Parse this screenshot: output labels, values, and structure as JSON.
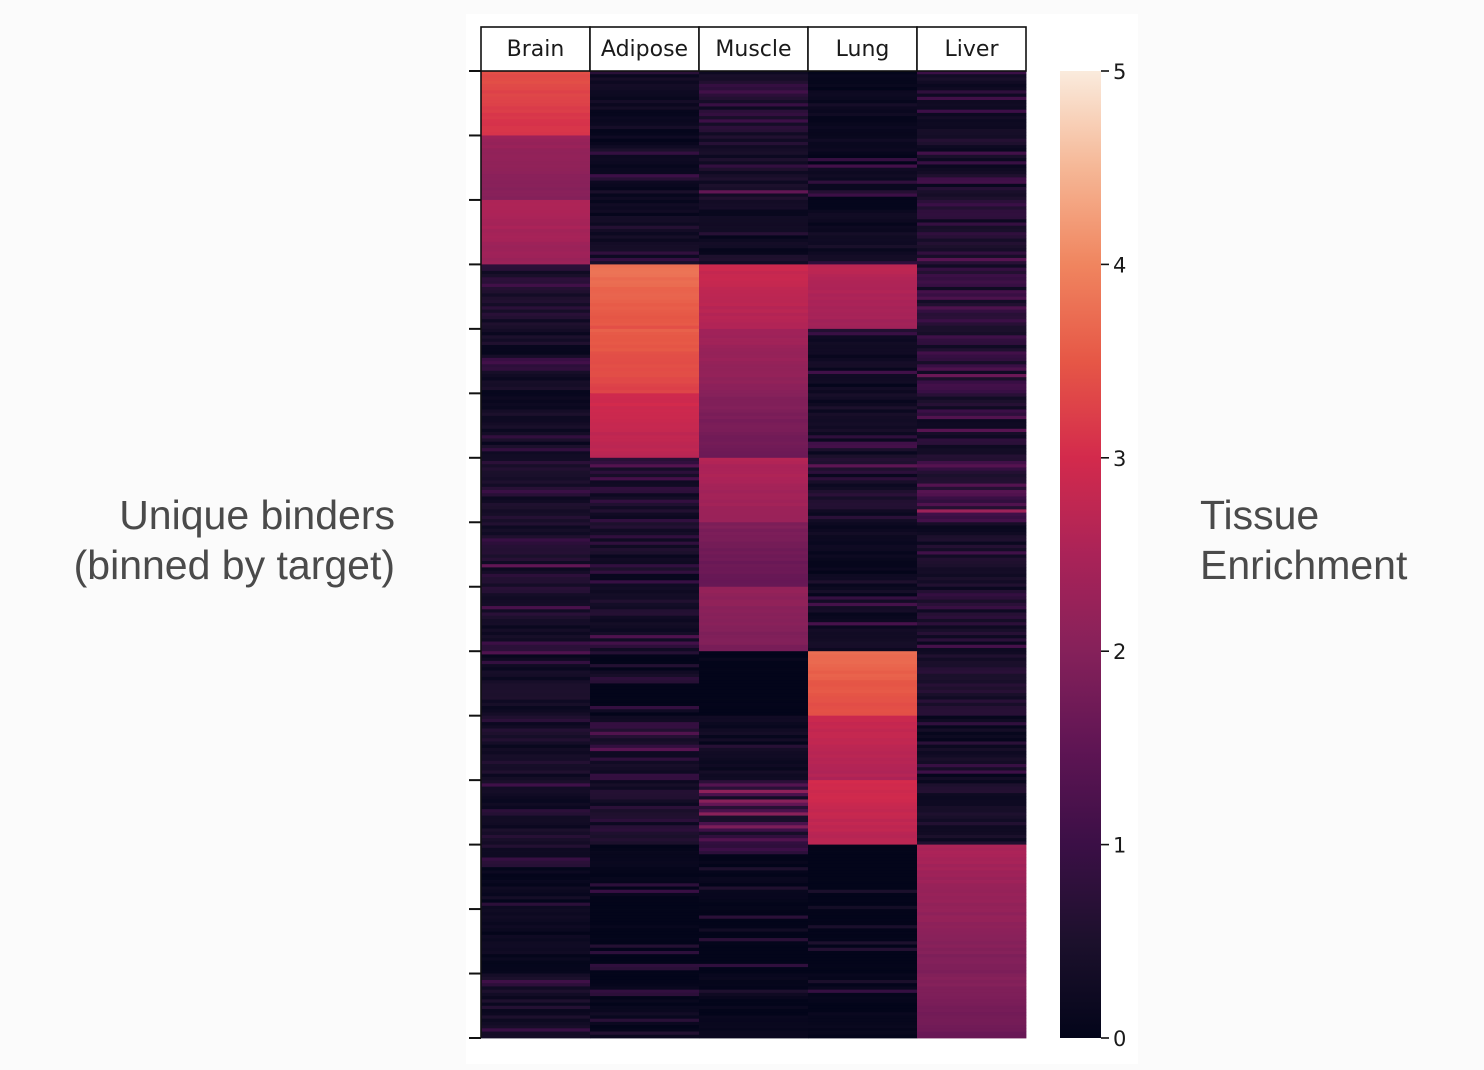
{
  "chart_data": {
    "type": "heatmap",
    "title": "",
    "categories": [
      "Brain",
      "Adipose",
      "Muscle",
      "Lung",
      "Liver"
    ],
    "ylabel": [
      "Unique binders",
      "(binned by target)"
    ],
    "colorbar_label": [
      "Tissue",
      "Enrichment"
    ],
    "colorbar_range": [
      0,
      5
    ],
    "colorbar_ticks": [
      "0",
      "1",
      "2",
      "3",
      "4",
      "5"
    ],
    "row_bins": 15,
    "cmap": "rocket",
    "bin_values": [
      [
        3.2,
        0.4,
        0.9,
        0.3,
        0.5
      ],
      [
        2.1,
        0.3,
        0.7,
        0.3,
        0.6
      ],
      [
        2.4,
        0.4,
        0.4,
        0.4,
        0.8
      ],
      [
        0.7,
        3.6,
        2.7,
        2.5,
        1.0
      ],
      [
        0.5,
        3.4,
        2.2,
        0.4,
        1.0
      ],
      [
        0.5,
        2.8,
        1.8,
        0.5,
        0.8
      ],
      [
        0.7,
        0.8,
        2.4,
        0.7,
        1.4
      ],
      [
        0.7,
        0.5,
        1.7,
        0.3,
        0.6
      ],
      [
        0.7,
        0.6,
        2.0,
        0.4,
        0.7
      ],
      [
        0.5,
        0.1,
        0.1,
        3.5,
        0.7
      ],
      [
        0.6,
        0.8,
        0.4,
        2.7,
        0.4
      ],
      [
        0.5,
        0.7,
        1.2,
        2.8,
        0.6
      ],
      [
        0.3,
        0.2,
        0.2,
        0.1,
        2.3
      ],
      [
        0.3,
        0.1,
        0.1,
        0.1,
        2.0
      ],
      [
        0.6,
        0.2,
        0.2,
        0.2,
        1.8
      ]
    ],
    "rows_per_bin": 20
  }
}
